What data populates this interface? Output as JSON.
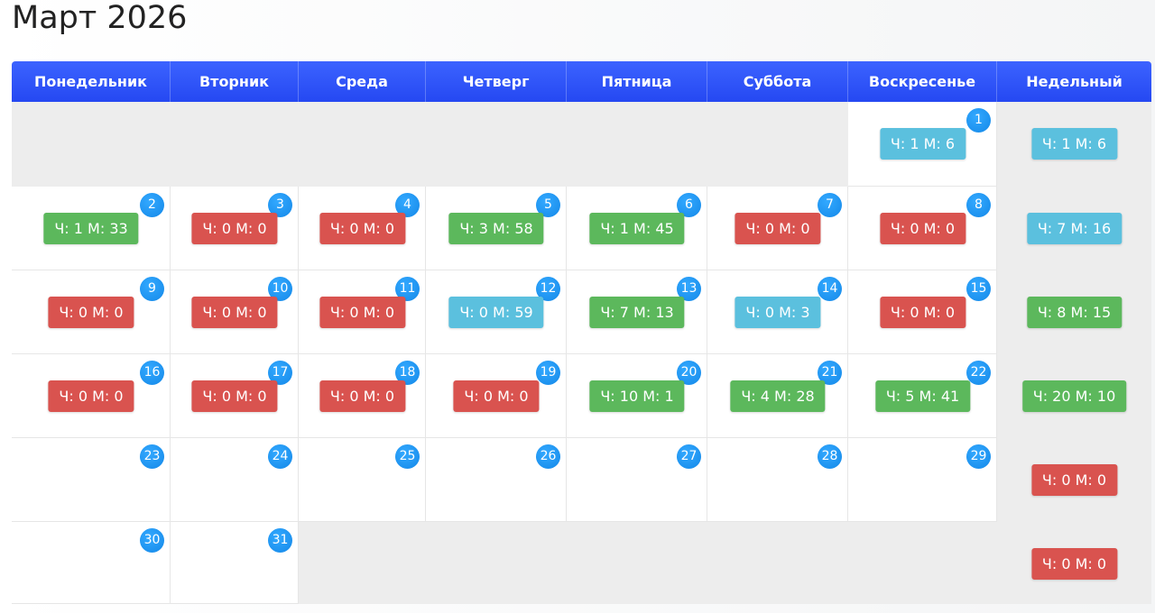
{
  "title": "Март 2026",
  "weekdays": [
    "Понедельник",
    "Вторник",
    "Среда",
    "Четверг",
    "Пятница",
    "Суббота",
    "Воскресенье",
    "Недельный"
  ],
  "colors": {
    "red": "#d9534f",
    "green": "#5cb85c",
    "blue": "#5bc0de",
    "header": "#2d57ff",
    "day_circle": "#1a9bff"
  },
  "weeks": [
    [
      null,
      null,
      null,
      null,
      null,
      null,
      {
        "day": "1",
        "label": "Ч: 1 М: 6",
        "color": "blue"
      }
    ],
    [
      {
        "day": "2",
        "label": "Ч: 1 М: 33",
        "color": "green"
      },
      {
        "day": "3",
        "label": "Ч: 0 М: 0",
        "color": "red"
      },
      {
        "day": "4",
        "label": "Ч: 0 М: 0",
        "color": "red"
      },
      {
        "day": "5",
        "label": "Ч: 3 М: 58",
        "color": "green"
      },
      {
        "day": "6",
        "label": "Ч: 1 М: 45",
        "color": "green"
      },
      {
        "day": "7",
        "label": "Ч: 0 М: 0",
        "color": "red"
      },
      {
        "day": "8",
        "label": "Ч: 0 М: 0",
        "color": "red"
      }
    ],
    [
      {
        "day": "9",
        "label": "Ч: 0 М: 0",
        "color": "red"
      },
      {
        "day": "10",
        "label": "Ч: 0 М: 0",
        "color": "red"
      },
      {
        "day": "11",
        "label": "Ч: 0 М: 0",
        "color": "red"
      },
      {
        "day": "12",
        "label": "Ч: 0 М: 59",
        "color": "blue"
      },
      {
        "day": "13",
        "label": "Ч: 7 М: 13",
        "color": "green"
      },
      {
        "day": "14",
        "label": "Ч: 0 М: 3",
        "color": "blue"
      },
      {
        "day": "15",
        "label": "Ч: 0 М: 0",
        "color": "red"
      }
    ],
    [
      {
        "day": "16",
        "label": "Ч: 0 М: 0",
        "color": "red"
      },
      {
        "day": "17",
        "label": "Ч: 0 М: 0",
        "color": "red"
      },
      {
        "day": "18",
        "label": "Ч: 0 М: 0",
        "color": "red"
      },
      {
        "day": "19",
        "label": "Ч: 0 М: 0",
        "color": "red"
      },
      {
        "day": "20",
        "label": "Ч: 10 М: 1",
        "color": "green"
      },
      {
        "day": "21",
        "label": "Ч: 4 М: 28",
        "color": "green"
      },
      {
        "day": "22",
        "label": "Ч: 5 М: 41",
        "color": "green"
      }
    ],
    [
      {
        "day": "23"
      },
      {
        "day": "24"
      },
      {
        "day": "25"
      },
      {
        "day": "26"
      },
      {
        "day": "27"
      },
      {
        "day": "28"
      },
      {
        "day": "29"
      }
    ],
    [
      {
        "day": "30"
      },
      {
        "day": "31"
      },
      null,
      null,
      null,
      null,
      null
    ]
  ],
  "weekly": [
    {
      "label": "Ч: 1 М: 6",
      "color": "blue"
    },
    {
      "label": "Ч: 7 М: 16",
      "color": "blue"
    },
    {
      "label": "Ч: 8 М: 15",
      "color": "green"
    },
    {
      "label": "Ч: 20 М: 10",
      "color": "green"
    },
    {
      "label": "Ч: 0 М: 0",
      "color": "red"
    },
    {
      "label": "Ч: 0 М: 0",
      "color": "red"
    }
  ]
}
